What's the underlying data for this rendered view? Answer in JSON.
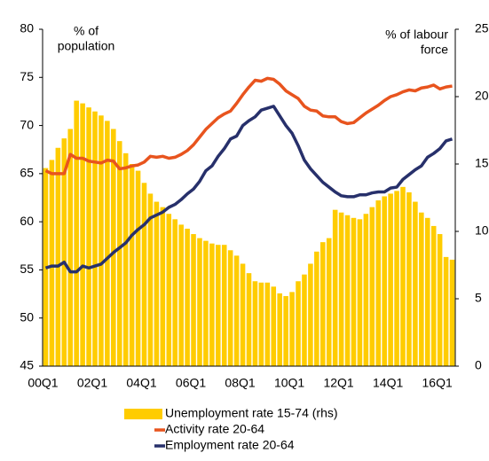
{
  "chart_data": {
    "type": "combo",
    "ylabel": [
      "% of",
      "population"
    ],
    "y2label": [
      "% of labour",
      "force"
    ],
    "categories": [
      "00Q1",
      null,
      null,
      null,
      null,
      null,
      null,
      null,
      "02Q1",
      null,
      null,
      null,
      null,
      null,
      null,
      null,
      "04Q1",
      null,
      null,
      null,
      null,
      null,
      null,
      null,
      "06Q1",
      null,
      null,
      null,
      null,
      null,
      null,
      null,
      "08Q1",
      null,
      null,
      null,
      null,
      null,
      null,
      null,
      "10Q1",
      null,
      null,
      null,
      null,
      null,
      null,
      null,
      "12Q1",
      null,
      null,
      null,
      null,
      null,
      null,
      null,
      "14Q1",
      null,
      null,
      null,
      null,
      null,
      null,
      null,
      "16Q1",
      null,
      null
    ],
    "ylim": [
      45,
      80
    ],
    "yticks": [
      45,
      50,
      55,
      60,
      65,
      70,
      75,
      80
    ],
    "y2lim": [
      0,
      25
    ],
    "y2ticks": [
      0,
      5,
      10,
      15,
      20,
      25
    ],
    "series": [
      {
        "name": "Unemployment rate 15-74 (rhs)",
        "type": "bar",
        "axis": "y2",
        "color": "#ffcc00",
        "values": [
          14.7,
          15.3,
          16.2,
          16.9,
          17.6,
          19.7,
          19.5,
          19.2,
          18.9,
          18.6,
          18.2,
          17.6,
          16.7,
          15.8,
          15.0,
          14.5,
          13.6,
          12.8,
          12.2,
          11.8,
          11.3,
          10.9,
          10.5,
          10.2,
          9.8,
          9.5,
          9.3,
          9.1,
          9.0,
          9.0,
          8.6,
          8.2,
          7.6,
          6.9,
          6.3,
          6.2,
          6.2,
          5.9,
          5.4,
          5.2,
          5.5,
          6.3,
          6.8,
          7.6,
          8.5,
          9.2,
          9.5,
          11.6,
          11.4,
          11.2,
          11.0,
          10.9,
          11.3,
          11.8,
          12.3,
          12.6,
          12.8,
          13.0,
          13.3,
          12.9,
          12.2,
          11.4,
          11.0,
          10.4,
          9.8,
          8.1,
          7.9
        ]
      },
      {
        "name": "Activity rate 20-64",
        "type": "line",
        "color": "#e8541e",
        "values": [
          65.3,
          65.0,
          65.0,
          65.0,
          67.0,
          66.6,
          66.6,
          66.3,
          66.2,
          66.1,
          66.4,
          66.3,
          65.5,
          65.6,
          65.8,
          65.9,
          66.2,
          66.8,
          66.7,
          66.8,
          66.6,
          66.7,
          67.0,
          67.4,
          68.0,
          68.8,
          69.6,
          70.2,
          70.8,
          71.2,
          71.5,
          72.3,
          73.2,
          74.0,
          74.7,
          74.6,
          74.9,
          74.8,
          74.3,
          73.6,
          73.2,
          72.8,
          72.0,
          71.6,
          71.5,
          71.0,
          70.9,
          70.9,
          70.4,
          70.2,
          70.3,
          70.8,
          71.3,
          71.7,
          72.1,
          72.6,
          73.0,
          73.2,
          73.5,
          73.7,
          73.6,
          73.9,
          74.0,
          74.2,
          73.8,
          74.0,
          74.1
        ]
      },
      {
        "name": "Employment rate 20-64",
        "type": "line",
        "color": "#27306b",
        "values": [
          55.2,
          55.4,
          55.4,
          55.8,
          54.8,
          54.8,
          55.4,
          55.2,
          55.4,
          55.6,
          56.2,
          56.8,
          57.3,
          57.8,
          58.6,
          59.2,
          59.7,
          60.4,
          60.7,
          61.0,
          61.5,
          61.8,
          62.3,
          62.9,
          63.4,
          64.2,
          65.3,
          65.8,
          66.8,
          67.6,
          68.6,
          68.9,
          70.0,
          70.5,
          70.9,
          71.6,
          71.8,
          72.0,
          71.0,
          70.0,
          69.2,
          67.9,
          66.4,
          65.5,
          64.8,
          64.1,
          63.6,
          63.1,
          62.7,
          62.6,
          62.6,
          62.8,
          62.8,
          63.0,
          63.1,
          63.1,
          63.5,
          63.6,
          64.4,
          64.9,
          65.4,
          65.8,
          66.7,
          67.1,
          67.6,
          68.4,
          68.6
        ]
      }
    ]
  }
}
